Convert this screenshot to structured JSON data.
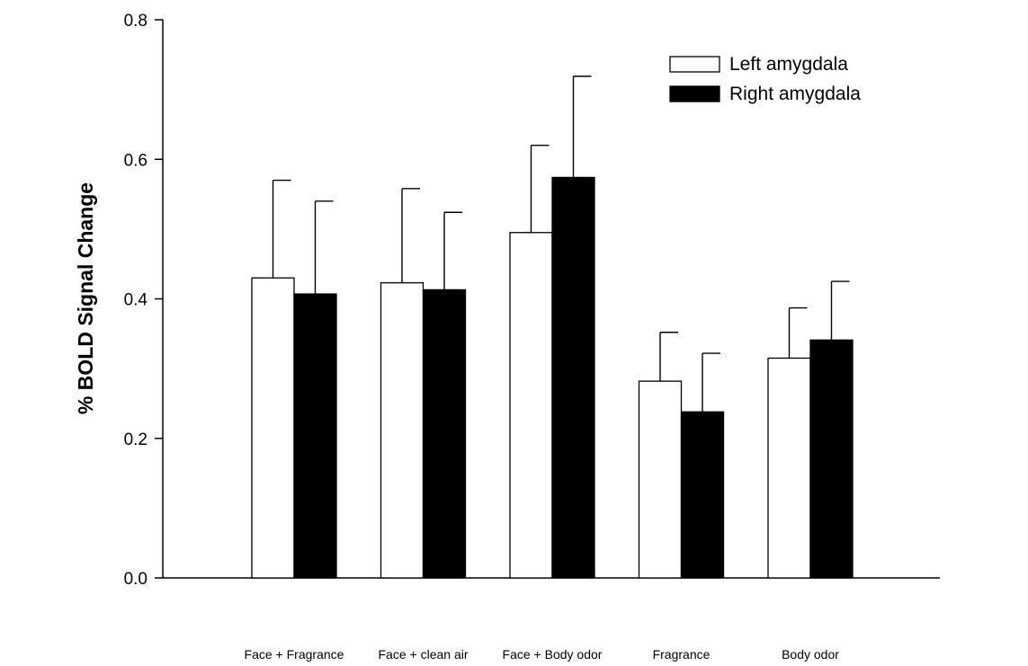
{
  "chart_data": {
    "type": "bar",
    "title": "",
    "xlabel": "",
    "ylabel": "% BOLD Signal Change",
    "ylim": [
      0,
      0.8
    ],
    "yticks": [
      "0.0",
      "0.2",
      "0.4",
      "0.6",
      "0.8"
    ],
    "categories": [
      "Face + Fragrance",
      "Face + clean air",
      "Face + Body odor",
      "Fragrance",
      "Body odor"
    ],
    "series": [
      {
        "name": "Left amygdala",
        "color": "#ffffff",
        "values": [
          0.43,
          0.423,
          0.495,
          0.282,
          0.315
        ],
        "errors": [
          0.14,
          0.135,
          0.125,
          0.07,
          0.072
        ]
      },
      {
        "name": "Right amygdala",
        "color": "#000000",
        "values": [
          0.407,
          0.413,
          0.574,
          0.238,
          0.341
        ],
        "errors": [
          0.133,
          0.111,
          0.145,
          0.084,
          0.084
        ]
      }
    ],
    "legend_position": "top-right",
    "grid": false,
    "error_bars": "upper"
  }
}
